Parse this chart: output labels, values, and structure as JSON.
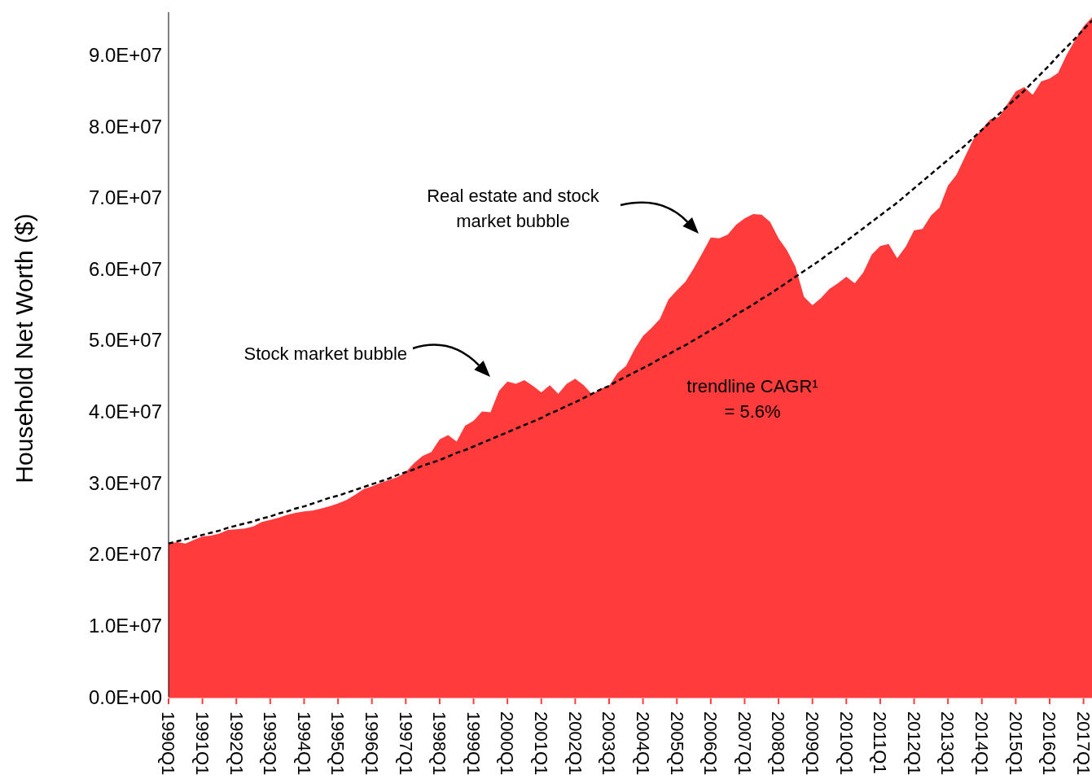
{
  "chart_data": {
    "type": "area",
    "ylabel": "Household Net Worth ($)",
    "categories": [
      "1990Q1",
      null,
      null,
      null,
      "1991Q1",
      null,
      null,
      null,
      "1992Q1",
      null,
      null,
      null,
      "1993Q1",
      null,
      null,
      null,
      "1994Q1",
      null,
      null,
      null,
      "1995Q1",
      null,
      null,
      null,
      "1996Q1",
      null,
      null,
      null,
      "1997Q1",
      null,
      null,
      null,
      "1998Q1",
      null,
      null,
      null,
      "1999Q1",
      null,
      null,
      null,
      "2000Q1",
      null,
      null,
      null,
      "2001Q1",
      null,
      null,
      null,
      "2002Q1",
      null,
      null,
      null,
      "2003Q1",
      null,
      null,
      null,
      "2004Q1",
      null,
      null,
      null,
      "2005Q1",
      null,
      null,
      null,
      "2006Q1",
      null,
      null,
      null,
      "2007Q1",
      null,
      null,
      null,
      "2008Q1",
      null,
      null,
      null,
      "2009Q1",
      null,
      null,
      null,
      "2010Q1",
      null,
      null,
      null,
      "2011Q1",
      null,
      null,
      null,
      "2012Q1",
      null,
      null,
      null,
      "2013Q1",
      null,
      null,
      null,
      "2014Q1",
      null,
      null,
      null,
      "2015Q1",
      null,
      null,
      null,
      "2016Q1",
      null,
      null,
      null,
      "2017Q1",
      null
    ],
    "series": [
      {
        "color": "#ff3b3b",
        "values": [
          21500000,
          21700000,
          21500000,
          22000000,
          22500000,
          22600000,
          22900000,
          23400000,
          23500000,
          23600000,
          23900000,
          24500000,
          24800000,
          25100000,
          25500000,
          25800000,
          26000000,
          26100000,
          26400000,
          26700000,
          27100000,
          27600000,
          28300000,
          29100000,
          29500000,
          30000000,
          30400000,
          30800000,
          31500000,
          32800000,
          33800000,
          34300000,
          36100000,
          36700000,
          35800000,
          38000000,
          38700000,
          40000000,
          39900000,
          42900000,
          44200000,
          43900000,
          44400000,
          43600000,
          42700000,
          43700000,
          42500000,
          43900000,
          44600000,
          43700000,
          42400000,
          43200000,
          43600000,
          45400000,
          46400000,
          48700000,
          50600000,
          51700000,
          53000000,
          55700000,
          57000000,
          58200000,
          60100000,
          62200000,
          64400000,
          64300000,
          64800000,
          66200000,
          67100000,
          67700000,
          67600000,
          66600000,
          64300000,
          62600000,
          60300000,
          56100000,
          54900000,
          55900000,
          57200000,
          58000000,
          58900000,
          58000000,
          59500000,
          62000000,
          63200000,
          63500000,
          61500000,
          63100000,
          65400000,
          65600000,
          67500000,
          68600000,
          71700000,
          73200000,
          75700000,
          78200000,
          79600000,
          81000000,
          81300000,
          83100000,
          84900000,
          85500000,
          84400000,
          86300000,
          86700000,
          87500000,
          90000000,
          92100000,
          94000000,
          95300000
        ]
      },
      {
        "type": "line",
        "color": "#000000",
        "line_style": "dashed",
        "values": [
          21500000,
          21800000,
          22100000,
          22400000,
          22700000,
          23000000,
          23300000,
          23700000,
          24000000,
          24300000,
          24600000,
          25000000,
          25300000,
          25700000,
          26000000,
          26400000,
          26700000,
          27100000,
          27500000,
          27900000,
          28200000,
          28600000,
          29000000,
          29400000,
          29800000,
          30200000,
          30600000,
          31100000,
          31500000,
          31900000,
          32400000,
          32800000,
          33200000,
          33700000,
          34200000,
          34600000,
          35100000,
          35600000,
          36100000,
          36600000,
          37100000,
          37600000,
          38100000,
          38600000,
          39100000,
          39700000,
          40200000,
          40800000,
          41300000,
          41900000,
          42500000,
          43100000,
          43600000,
          44300000,
          44900000,
          45500000,
          46100000,
          46700000,
          47400000,
          48000000,
          48700000,
          49300000,
          50000000,
          50700000,
          51400000,
          52100000,
          52800000,
          53600000,
          54300000,
          55000000,
          55800000,
          56500000,
          57300000,
          58100000,
          58900000,
          59700000,
          60500000,
          61300000,
          62200000,
          63000000,
          63900000,
          64800000,
          65700000,
          66600000,
          67500000,
          68400000,
          69300000,
          70300000,
          71300000,
          72300000,
          73300000,
          74300000,
          75300000,
          76300000,
          77300000,
          78400000,
          79500000,
          80600000,
          81700000,
          82800000,
          83900000,
          85000000,
          86200000,
          87400000,
          88600000,
          89900000,
          91100000,
          92300000,
          93600000,
          94800000
        ]
      }
    ],
    "ylim": [
      0,
      96000000
    ],
    "yticks": [
      {
        "value": 0,
        "label": "0.0E+00"
      },
      {
        "value": 10000000,
        "label": "1.0E+07"
      },
      {
        "value": 20000000,
        "label": "2.0E+07"
      },
      {
        "value": 30000000,
        "label": "3.0E+07"
      },
      {
        "value": 40000000,
        "label": "4.0E+07"
      },
      {
        "value": 50000000,
        "label": "5.0E+07"
      },
      {
        "value": 60000000,
        "label": "6.0E+07"
      },
      {
        "value": 70000000,
        "label": "7.0E+07"
      },
      {
        "value": 80000000,
        "label": "8.0E+07"
      },
      {
        "value": 90000000,
        "label": "9.0E+07"
      }
    ],
    "grid": false,
    "legend": false,
    "annotations": [
      "Stock market bubble",
      "Real estate and stock market bubble",
      "trendline CAGR¹ = 5.6%"
    ]
  }
}
